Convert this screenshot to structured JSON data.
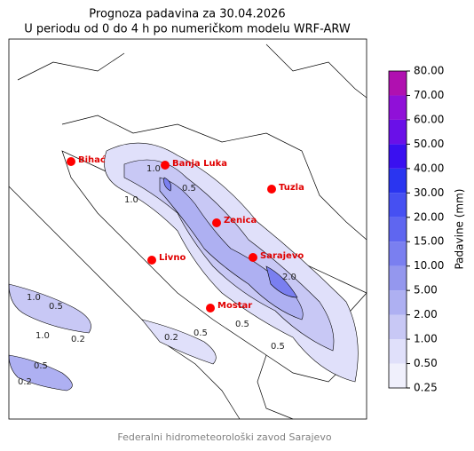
{
  "header": {
    "title": "Prognoza padavina za 30.04.2026",
    "subtitle": "U periodu od 0 do 4 h po numeričkom modelu WRF-ARW"
  },
  "cities": [
    "Bihać",
    "Banja Luka",
    "Tuzla",
    "Zenica",
    "Livno",
    "Sarajevo",
    "Mostar"
  ],
  "contour_labels": [
    "1.0",
    "0.5",
    "1.0",
    "0.2",
    "0.5",
    "1.0",
    "2.0",
    "0.5",
    "0.5",
    "0.2",
    "0.5",
    "1.0",
    "0.5",
    "0.2"
  ],
  "colorbar": {
    "label": "Padavine (mm)",
    "ticks": [
      {
        "value": 0.25,
        "label": "0.25"
      },
      {
        "value": 0.5,
        "label": "0.50"
      },
      {
        "value": 1,
        "label": "1.00"
      },
      {
        "value": 2,
        "label": "2.00"
      },
      {
        "value": 5,
        "label": "5.00"
      },
      {
        "value": 10,
        "label": "10.00"
      },
      {
        "value": 15,
        "label": "15.00"
      },
      {
        "value": 20,
        "label": "20.00"
      },
      {
        "value": 30,
        "label": "30.00"
      },
      {
        "value": 40,
        "label": "40.00"
      },
      {
        "value": 50,
        "label": "50.00"
      },
      {
        "value": 60,
        "label": "60.00"
      },
      {
        "value": 70,
        "label": "70.00"
      },
      {
        "value": 80,
        "label": "80.00"
      }
    ],
    "colors": [
      "#f0f0fc",
      "#e0e0fa",
      "#c8c8f5",
      "#aeb0f2",
      "#9497ee",
      "#7a7ff0",
      "#5f66f0",
      "#4650f2",
      "#2a35f0",
      "#3a10f0",
      "#6a10e8",
      "#9010d8",
      "#b010b0"
    ]
  },
  "footer": "Federalni hidrometeorološki zavod Sarajevo"
}
